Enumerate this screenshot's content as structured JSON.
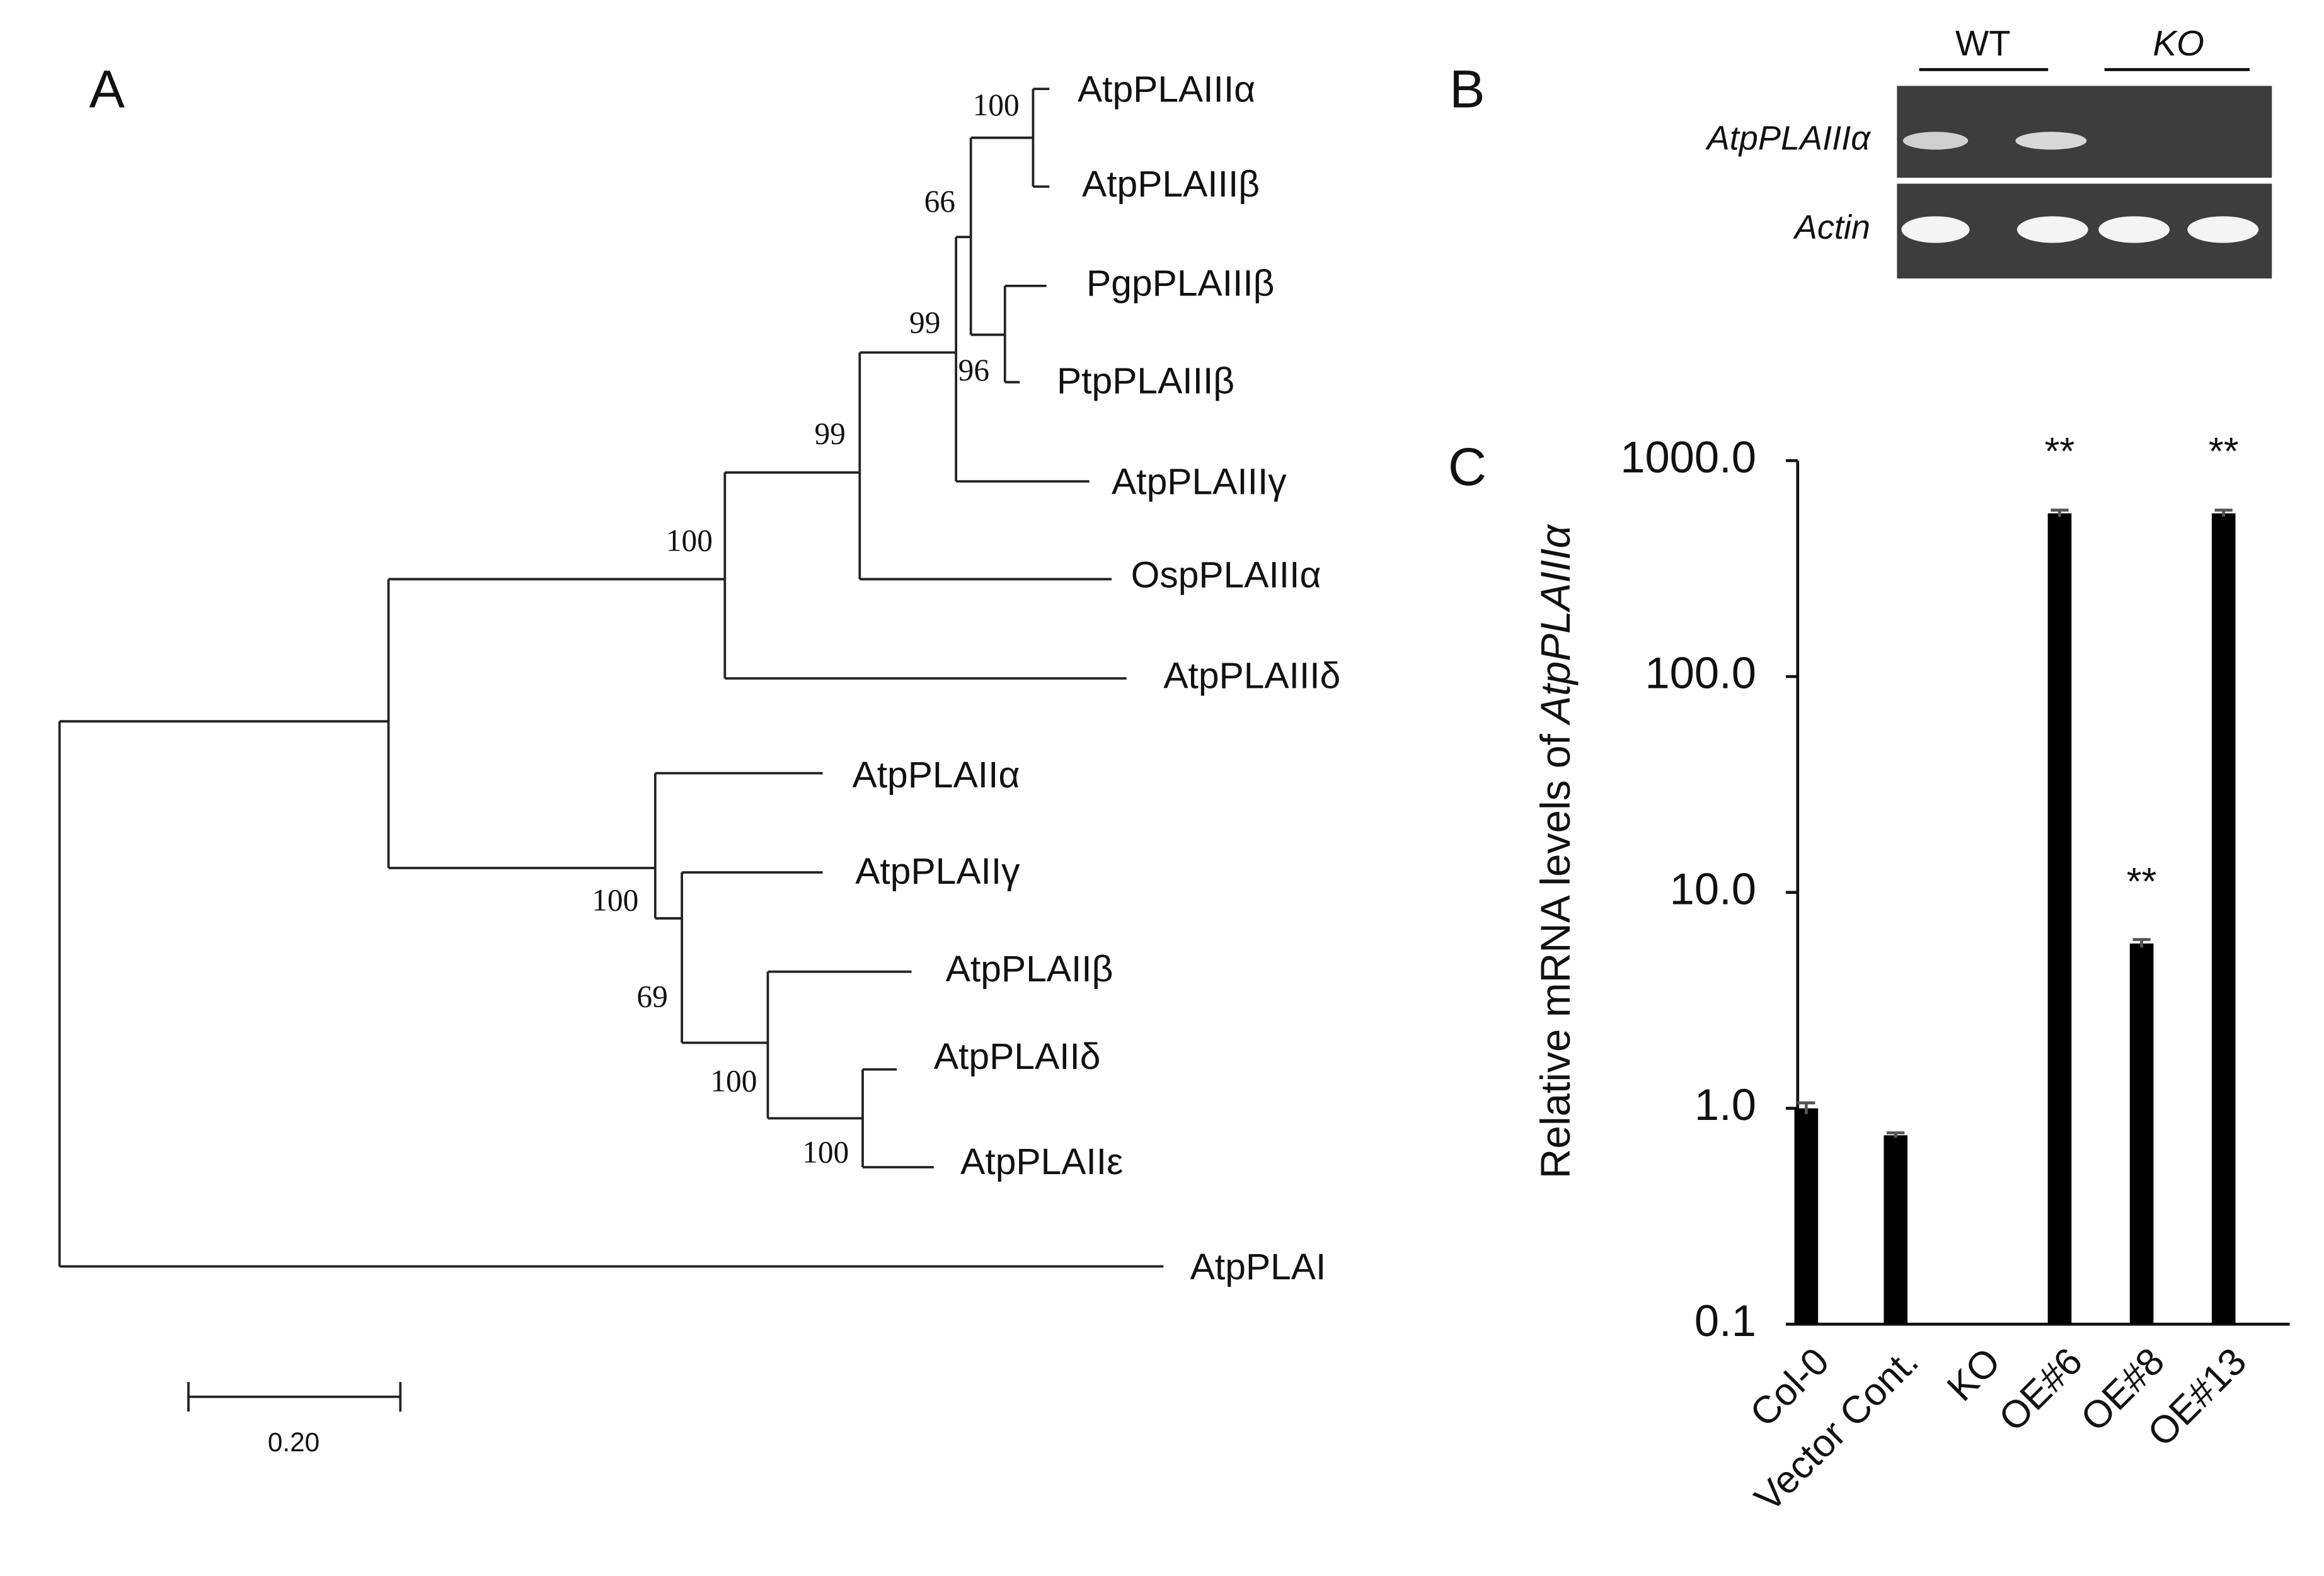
{
  "panel_labels": [
    "A",
    "B",
    "C"
  ],
  "tree": {
    "bootstrap": [
      "100",
      "66",
      "99",
      "96",
      "99",
      "100",
      "100",
      "69",
      "100",
      "100"
    ],
    "leaves": [
      "AtpPLAIIIα",
      "AtpPLAIIIβ",
      "PgpPLAIIIβ",
      "PtpPLAIIIβ",
      "AtpPLAIIIγ",
      "OspPLAIIIα",
      "AtpPLAIIIδ",
      "AtpPLAIIα",
      "AtpPLAIIγ",
      "AtpPLAIIβ",
      "AtpPLAIIδ",
      "AtpPLAIIε",
      "AtpPLAI"
    ],
    "scale_label": "0.20"
  },
  "gel": {
    "column_groups": [
      "WT",
      "KO"
    ],
    "row_labels": [
      "AtpPLAIIIα",
      "Actin"
    ]
  },
  "chart_data": {
    "type": "bar",
    "ylabel": "Relative mRNA levels of",
    "ylabel_gene": "AtpPLAIIIα",
    "categories": [
      "Col-0",
      "Vector Cont.",
      "KO",
      "OE#6",
      "OE#8",
      "OE#13"
    ],
    "values": [
      1.0,
      0.75,
      0.1,
      570,
      5.8,
      570
    ],
    "errors": [
      0.06,
      0.02,
      0,
      20,
      0.25,
      20
    ],
    "annotations": [
      null,
      null,
      null,
      "**",
      "**",
      "**"
    ],
    "color": "#000000",
    "log_scale": true,
    "ylim": [
      0.1,
      1000
    ],
    "yticks": [
      0.1,
      {
        "value": 1,
        "label": "1.0"
      },
      {
        "value": 10,
        "label": "10.0"
      },
      {
        "value": 100,
        "label": "100.0"
      },
      {
        "value": 1000,
        "label": "1000.0"
      }
    ]
  }
}
